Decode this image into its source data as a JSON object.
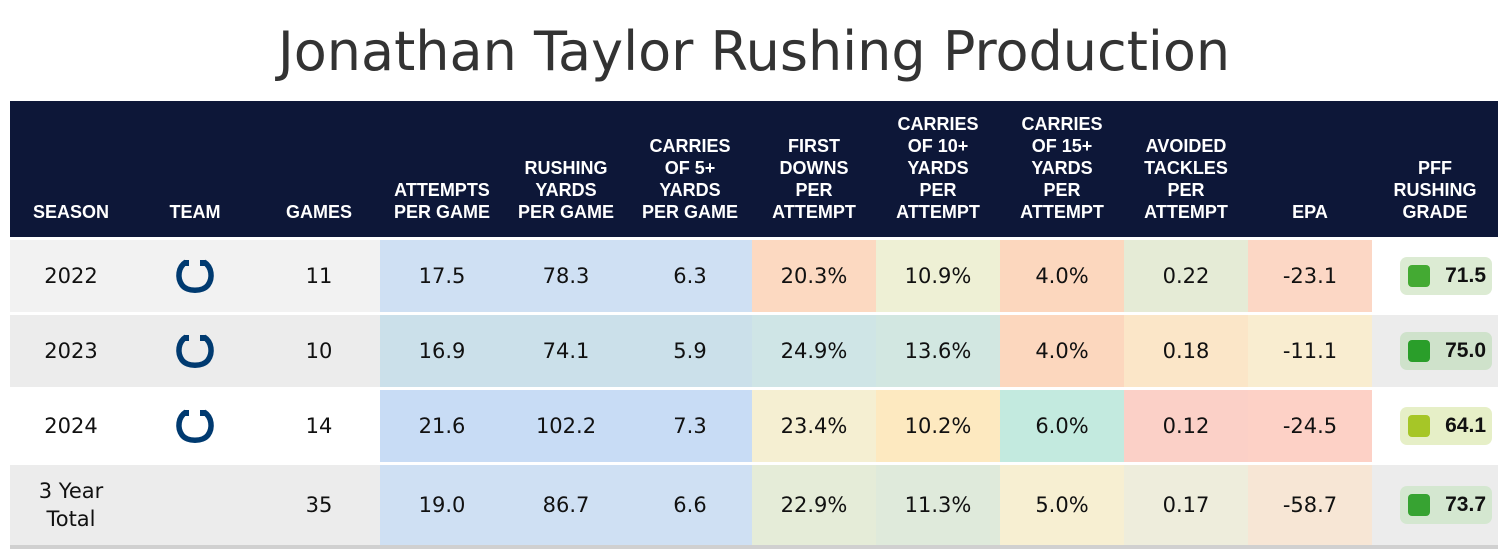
{
  "title": "Jonathan Taylor Rushing Production",
  "chart_data": {
    "type": "table",
    "title": "Jonathan Taylor Rushing Production",
    "columns": [
      "SEASON",
      "TEAM",
      "GAMES",
      "ATTEMPTS PER GAME",
      "RUSHING YARDS PER GAME",
      "CARRIES OF 5+ YARDS PER GAME",
      "FIRST DOWNS PER ATTEMPT",
      "CARRIES OF 10+ YARDS PER ATTEMPT",
      "CARRIES OF 15+ YARDS PER ATTEMPT",
      "AVOIDED TACKLES PER ATTEMPT",
      "EPA",
      "PFF RUSHING GRADE"
    ],
    "header_lines": [
      [
        "SEASON"
      ],
      [
        "TEAM"
      ],
      [
        "GAMES"
      ],
      [
        "ATTEMPTS",
        "PER GAME"
      ],
      [
        "RUSHING",
        "YARDS",
        "PER GAME"
      ],
      [
        "CARRIES",
        "OF 5+",
        "YARDS",
        "PER GAME"
      ],
      [
        "FIRST",
        "DOWNS",
        "PER",
        "ATTEMPT"
      ],
      [
        "CARRIES",
        "OF 10+",
        "YARDS",
        "PER",
        "ATTEMPT"
      ],
      [
        "CARRIES",
        "OF 15+",
        "YARDS",
        "PER",
        "ATTEMPT"
      ],
      [
        "AVOIDED",
        "TACKLES",
        "PER",
        "ATTEMPT"
      ],
      [
        "EPA"
      ],
      [
        "PFF",
        "RUSHING",
        "GRADE"
      ]
    ],
    "rows": [
      {
        "season": "2022",
        "team_icon": "colts-horseshoe-icon",
        "games": "11",
        "apg": "17.5",
        "ypg": "78.3",
        "c5pg": "6.3",
        "fdpa": "20.3%",
        "c10pa": "10.9%",
        "c15pa": "4.0%",
        "atpa": "0.22",
        "epa": "-23.1",
        "grade": "71.5"
      },
      {
        "season": "2023",
        "team_icon": "colts-horseshoe-icon",
        "games": "10",
        "apg": "16.9",
        "ypg": "74.1",
        "c5pg": "5.9",
        "fdpa": "24.9%",
        "c10pa": "13.6%",
        "c15pa": "4.0%",
        "atpa": "0.18",
        "epa": "-11.1",
        "grade": "75.0"
      },
      {
        "season": "2024",
        "team_icon": "colts-horseshoe-icon",
        "games": "14",
        "apg": "21.6",
        "ypg": "102.2",
        "c5pg": "7.3",
        "fdpa": "23.4%",
        "c10pa": "10.2%",
        "c15pa": "6.0%",
        "atpa": "0.12",
        "epa": "-24.5",
        "grade": "64.1"
      },
      {
        "season": "3 Year Total",
        "team_icon": "",
        "games": "35",
        "apg": "19.0",
        "ypg": "86.7",
        "c5pg": "6.6",
        "fdpa": "22.9%",
        "c10pa": "11.3%",
        "c15pa": "5.0%",
        "atpa": "0.17",
        "epa": "-58.7",
        "grade": "73.7"
      }
    ],
    "cell_colors": [
      [
        "#f2f2f2",
        "#f2f2f2",
        "#f2f2f2",
        "#cfe0f3",
        "#cfe0f3",
        "#cfe0f3",
        "#fcd9c1",
        "#eef0d5",
        "#fcd7be",
        "#e5ebd6",
        "#fcd7c5",
        "#ffffff"
      ],
      [
        "#ececec",
        "#ececec",
        "#ececec",
        "#cbe0ea",
        "#cbe0ea",
        "#cbe0ea",
        "#cfe5e6",
        "#d2e7e1",
        "#fcd7be",
        "#fbe6c8",
        "#f9edd0",
        "#ececec"
      ],
      [
        "#ffffff",
        "#ffffff",
        "#ffffff",
        "#c8dcf5",
        "#c8dcf5",
        "#c8dcf5",
        "#f5efd2",
        "#fde9c0",
        "#c3eadf",
        "#fbd0c7",
        "#fdd1c6",
        "#ffffff"
      ],
      [
        "#ececec",
        "#ececec",
        "#ececec",
        "#cfe0f3",
        "#cfe0f3",
        "#cfe0f3",
        "#e5ecd8",
        "#dfeadb",
        "#f7efd2",
        "#eeeddc",
        "#f7e6d5",
        "#ececec"
      ]
    ],
    "grade_colors": [
      {
        "bg": "#dcebd3",
        "dot": "#44aa33"
      },
      {
        "bg": "#cfe2cb",
        "dot": "#2a9e2a"
      },
      {
        "bg": "#e6efc7",
        "dot": "#a6c627"
      },
      {
        "bg": "#d4e7d0",
        "dot": "#37a332"
      }
    ],
    "header_bg": "#0d1738",
    "colts_blue": "#003a70"
  }
}
